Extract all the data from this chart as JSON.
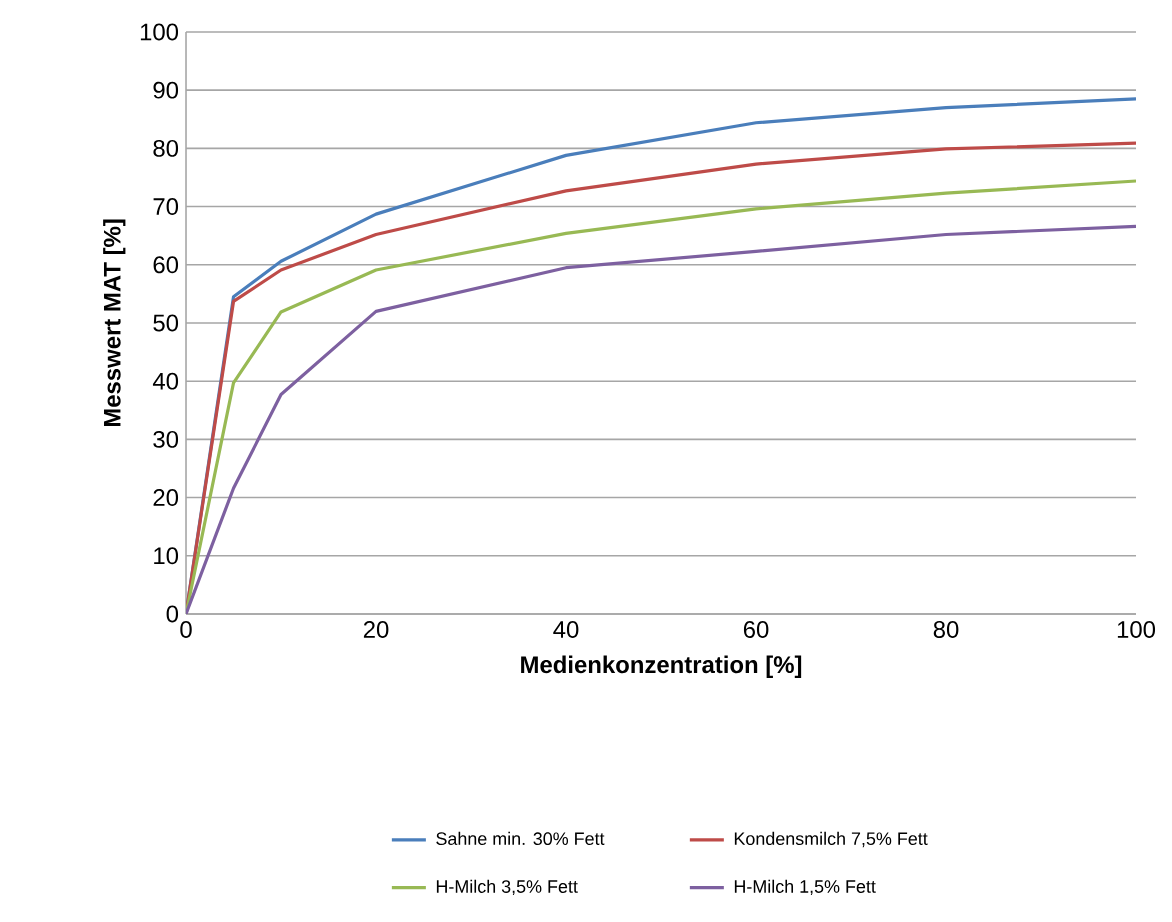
{
  "chart_data": {
    "type": "line",
    "xlabel": "Medienkonzentration [%]",
    "ylabel": "Messwert MAT [%]",
    "x": [
      0,
      5,
      10,
      20,
      40,
      60,
      80,
      100
    ],
    "series": [
      {
        "name": "Sahne min. 30% Fett",
        "color": "#4a7ebb",
        "values": [
          0,
          54.5,
          60.6,
          68.7,
          78.8,
          84.4,
          87.0,
          88.5
        ]
      },
      {
        "name": "Kondensmilch 7,5% Fett",
        "color": "#be4b48",
        "values": [
          0,
          53.7,
          59.1,
          65.2,
          72.7,
          77.3,
          79.9,
          80.9
        ]
      },
      {
        "name": "H-Milch 3,5% Fett",
        "color": "#98b954",
        "values": [
          0,
          39.7,
          51.9,
          59.1,
          65.4,
          69.6,
          72.3,
          74.4
        ]
      },
      {
        "name": "H-Milch 1,5% Fett",
        "color": "#7d60a0",
        "values": [
          0,
          21.6,
          37.7,
          52.0,
          59.5,
          62.3,
          65.2,
          66.6
        ]
      }
    ],
    "xlim": [
      0,
      100
    ],
    "xticks": [
      0,
      20,
      40,
      60,
      80,
      100
    ],
    "ylim": [
      0,
      100
    ],
    "yticks": [
      0,
      10,
      20,
      30,
      40,
      50,
      60,
      70,
      80,
      90,
      100
    ],
    "grid": "y",
    "legend": "bottom",
    "marker": "none",
    "line_style": "solid"
  }
}
